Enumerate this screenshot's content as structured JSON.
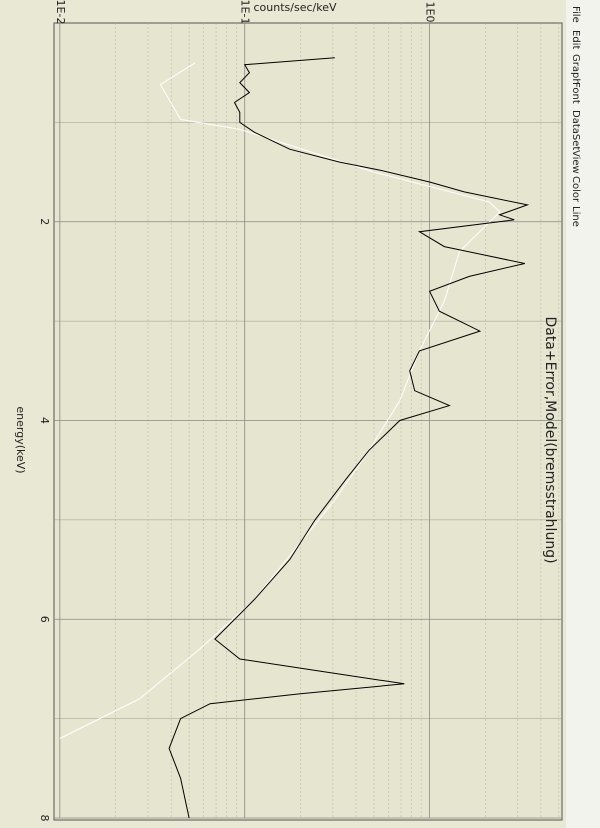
{
  "menu": [
    "File",
    "Edit",
    "Graph",
    "Font",
    "DataSet",
    "View",
    "Color",
    "Line"
  ],
  "chart_data": {
    "type": "line",
    "title": "Data+Error,Model(bremsstrahlung)",
    "x_label": "energy(keV)",
    "y_label": "counts/sec/keV",
    "y_log": true,
    "grid": true,
    "xlim": [
      0,
      8
    ],
    "xticks": [
      2,
      4,
      6,
      8
    ],
    "xminorticks": [
      1,
      3,
      5,
      7
    ],
    "ylim": [
      0.0093,
      5.2
    ],
    "yticks": [
      {
        "value": 0.01,
        "label": "1E-2"
      },
      {
        "value": 0.1,
        "label": "1E-1"
      },
      {
        "value": 1,
        "label": "1E0"
      }
    ],
    "yminorticks": [
      0.02,
      0.03,
      0.04,
      0.05,
      0.06,
      0.07,
      0.08,
      0.09,
      0.2,
      0.3,
      0.4,
      0.5,
      0.6,
      0.7,
      0.8,
      0.9,
      2,
      3,
      4,
      5
    ],
    "series": [
      {
        "color": "#000000",
        "x": [
          0.35,
          0.42,
          0.5,
          0.6,
          0.7,
          0.8,
          0.9,
          1.0,
          1.1,
          1.27,
          1.4,
          1.48,
          1.6,
          1.7,
          1.83,
          1.93,
          1.98,
          2.1,
          2.25,
          2.42,
          2.55,
          2.7,
          2.9,
          3.1,
          3.3,
          3.5,
          3.7,
          3.85,
          4.0,
          4.3,
          4.6,
          5.0,
          5.4,
          5.8,
          6.2,
          6.4,
          6.52,
          6.65,
          6.75,
          6.85,
          7.0,
          7.3,
          7.6,
          8.0
        ],
        "values": [
          0.307,
          0.1,
          0.106,
          0.094,
          0.106,
          0.088,
          0.094,
          0.094,
          0.113,
          0.175,
          0.326,
          0.537,
          1.0,
          1.54,
          3.38,
          2.39,
          2.87,
          0.88,
          1.2,
          3.27,
          1.64,
          1.0,
          1.13,
          1.87,
          0.88,
          0.78,
          0.83,
          1.28,
          0.69,
          0.47,
          0.35,
          0.24,
          0.175,
          0.113,
          0.069,
          0.094,
          0.25,
          0.73,
          0.2,
          0.065,
          0.045,
          0.039,
          0.045,
          0.05
        ]
      },
      {
        "color": "#ffffff",
        "x": [
          0.4,
          0.62,
          0.97,
          1.07,
          1.5,
          1.8,
          1.9,
          2.3,
          2.8,
          3.3,
          3.8,
          4.3,
          4.8,
          5.3,
          5.8,
          6.3,
          6.8,
          7.2
        ],
        "values": [
          0.054,
          0.035,
          0.045,
          0.094,
          0.5,
          2.1,
          2.4,
          1.45,
          1.2,
          0.88,
          0.69,
          0.47,
          0.307,
          0.186,
          0.113,
          0.057,
          0.027,
          0.01
        ]
      }
    ]
  }
}
